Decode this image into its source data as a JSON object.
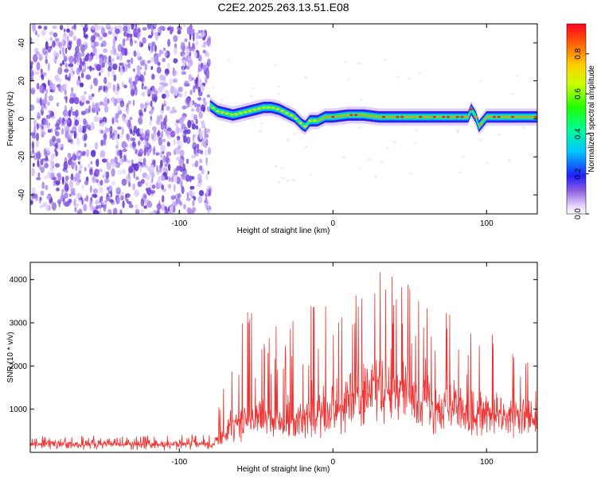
{
  "title": "C2E2.2025.263.13.51.E08",
  "chart_data": [
    {
      "type": "heatmap",
      "title": "C2E2.2025.263.13.51.E08",
      "xlabel": "Height of straight line (km)",
      "ylabel": "Frequency (Hz)",
      "xlim": [
        -197,
        133
      ],
      "ylim": [
        -50,
        50
      ],
      "xticks": [
        -100,
        0,
        100
      ],
      "yticks": [
        -40,
        -20,
        0,
        20,
        40
      ],
      "noise_region": [
        -197,
        -80
      ],
      "trace": {
        "x": [
          -80,
          -75,
          -70,
          -65,
          -60,
          -55,
          -50,
          -45,
          -40,
          -35,
          -30,
          -25,
          -20,
          -18,
          -15,
          -10,
          -5,
          0,
          10,
          20,
          30,
          40,
          50,
          60,
          70,
          80,
          88,
          90,
          93,
          95,
          100,
          110,
          120,
          133
        ],
        "y": [
          7,
          4,
          3,
          2,
          3,
          4,
          5,
          6,
          6,
          5,
          3,
          1,
          -3,
          -4,
          -1,
          -1,
          1,
          1,
          2,
          2,
          1,
          1,
          1,
          1,
          1,
          1,
          1,
          5,
          1,
          -4,
          1,
          1,
          1,
          1
        ]
      },
      "colorbar": {
        "label": "Normalized spectral amplitude",
        "range": [
          0,
          0.95
        ],
        "ticks": [
          0.0,
          0.2,
          0.4,
          0.6,
          0.8
        ],
        "tick_labels": [
          "0.0",
          "0.2",
          "0.4",
          "0.6",
          "0.8"
        ]
      }
    },
    {
      "type": "line",
      "xlabel": "Height of straight line (km)",
      "ylabel": "SNR (10 * v/v)",
      "xlim": [
        -197,
        133
      ],
      "ylim": [
        0,
        4400
      ],
      "xticks": [
        -100,
        0,
        100
      ],
      "yticks": [
        1000,
        2000,
        3000,
        4000
      ],
      "color": "#ee3333",
      "envelope": {
        "x": [
          -197,
          -80,
          -75,
          -70,
          -65,
          -55,
          -48,
          -40,
          -30,
          -20,
          -10,
          0,
          10,
          20,
          25,
          35,
          45,
          55,
          65,
          75,
          85,
          95,
          105,
          115,
          125,
          133
        ],
        "baseline": [
          150,
          150,
          300,
          450,
          650,
          800,
          900,
          800,
          750,
          850,
          1000,
          1100,
          1300,
          1500,
          1550,
          1600,
          1550,
          1450,
          1300,
          1200,
          1050,
          1000,
          950,
          900,
          850,
          800
        ],
        "peak": [
          380,
          420,
          900,
          1900,
          2700,
          3300,
          3600,
          3000,
          2900,
          3300,
          3500,
          3700,
          3800,
          3950,
          4000,
          4300,
          4100,
          3800,
          3400,
          3300,
          3100,
          2900,
          3200,
          2500,
          2300,
          1600
        ]
      }
    }
  ]
}
